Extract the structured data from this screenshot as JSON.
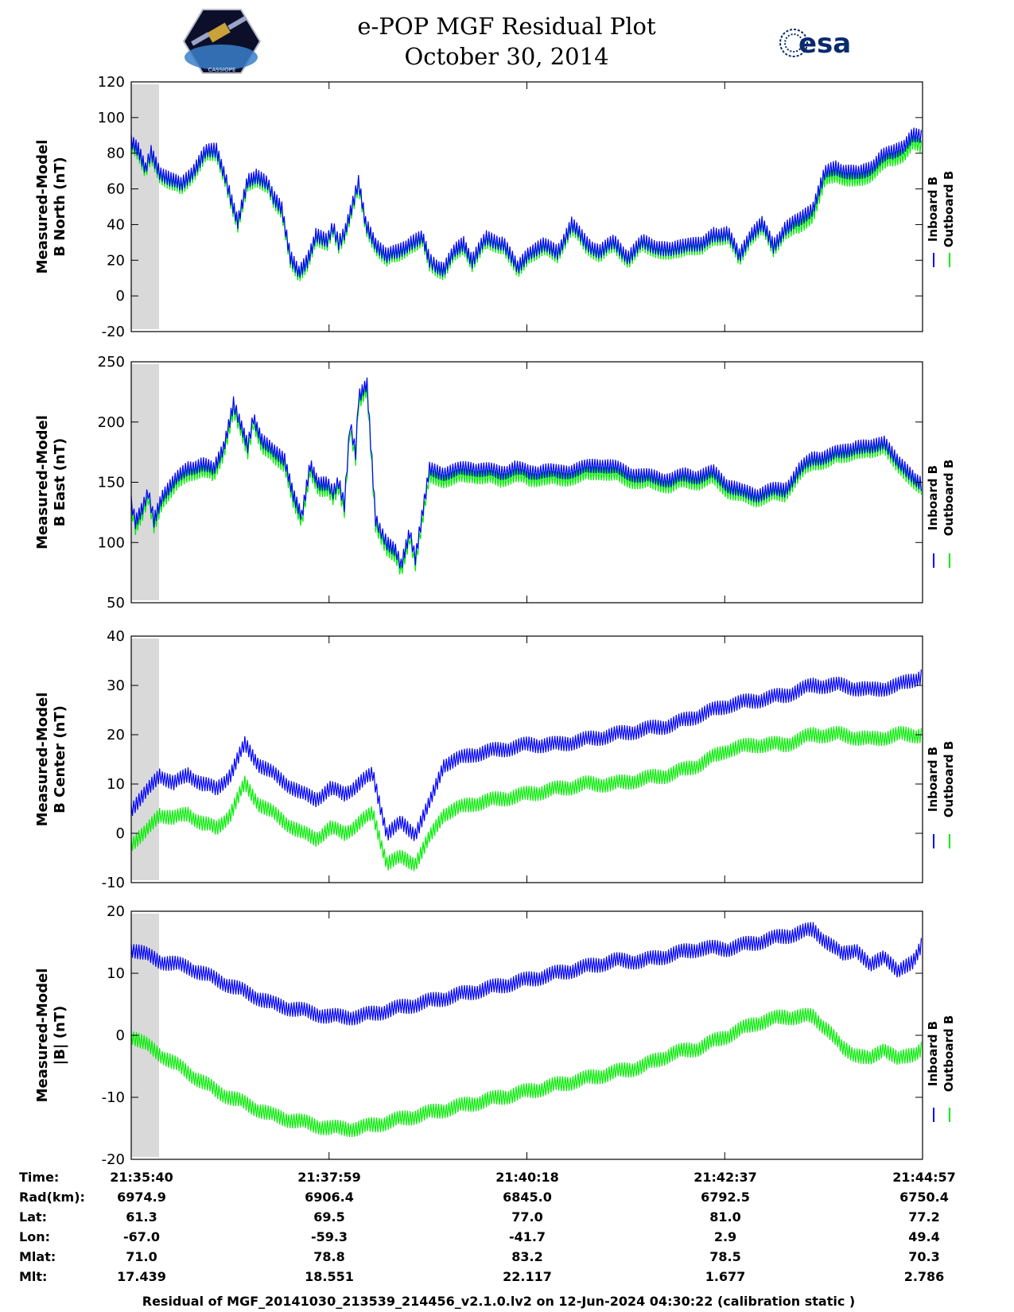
{
  "title_line1": "e-POP MGF Residual Plot",
  "title_line2": "October 30, 2014",
  "logo_left": {
    "label": "CASSIOPE"
  },
  "logo_right": {
    "label": "esa"
  },
  "colors": {
    "inboard": "#0000ff",
    "outboard": "#00ee00",
    "gap": "#d9d9d9"
  },
  "footer": "Residual of MGF_20141030_213539_214456_v2.1.0.lv2 on 12-Jun-2024 04:30:22 (calibration static )",
  "table": {
    "rows": [
      {
        "label": "Time:",
        "values": [
          "21:35:40",
          "21:37:59",
          "21:40:18",
          "21:42:37",
          "21:44:57"
        ]
      },
      {
        "label": "Rad(km):",
        "values": [
          "6974.9",
          "6906.4",
          "6845.0",
          "6792.5",
          "6750.4"
        ]
      },
      {
        "label": "Lat:",
        "values": [
          "61.3",
          "69.5",
          "77.0",
          "81.0",
          "77.2"
        ]
      },
      {
        "label": "Lon:",
        "values": [
          "-67.0",
          "-59.3",
          "-41.7",
          "2.9",
          "49.4"
        ]
      },
      {
        "label": "Mlat:",
        "values": [
          "71.0",
          "78.8",
          "83.2",
          "78.5",
          "70.3"
        ]
      },
      {
        "label": "Mlt:",
        "values": [
          "17.439",
          "18.551",
          "22.117",
          "1.677",
          "2.786"
        ]
      }
    ]
  },
  "chart_data": [
    {
      "type": "line",
      "ylabel": [
        "Measured-Model",
        "B North (nT)"
      ],
      "ylim": [
        -20,
        120
      ],
      "yticks": [
        -20,
        0,
        20,
        40,
        60,
        80,
        100,
        120
      ],
      "xlim": [
        0,
        557
      ],
      "legend": [
        "Inboard B",
        "Outboard B"
      ],
      "gap_x": [
        0,
        14
      ],
      "series": [
        {
          "name": "Inboard B",
          "x": [
            0,
            5,
            10,
            14,
            20,
            28,
            35,
            45,
            52,
            60,
            66,
            70,
            75,
            82,
            88,
            96,
            100,
            106,
            112,
            118,
            124,
            130,
            138,
            142,
            146,
            150,
            156,
            160,
            165,
            172,
            180,
            188,
            196,
            205,
            210,
            214,
            220,
            228,
            234,
            240,
            250,
            262,
            272,
            280,
            290,
            300,
            310,
            320,
            330,
            340,
            350,
            360,
            370,
            380,
            392,
            402,
            410,
            420,
            428,
            436,
            444,
            452,
            460,
            470,
            480,
            488,
            496,
            504,
            512,
            520,
            528,
            536,
            544,
            550,
            557
          ],
          "values": [
            88,
            82,
            70,
            80,
            70,
            65,
            62,
            72,
            80,
            82,
            68,
            55,
            40,
            65,
            68,
            62,
            55,
            50,
            22,
            12,
            20,
            35,
            30,
            38,
            30,
            36,
            52,
            63,
            40,
            30,
            22,
            25,
            30,
            32,
            20,
            18,
            15,
            25,
            30,
            20,
            32,
            30,
            15,
            25,
            28,
            25,
            40,
            30,
            25,
            30,
            22,
            30,
            28,
            25,
            30,
            28,
            35,
            35,
            22,
            35,
            40,
            28,
            38,
            42,
            50,
            68,
            72,
            70,
            68,
            72,
            78,
            80,
            85,
            90,
            88
          ]
        },
        {
          "name": "Outboard B",
          "x": [
            0,
            5,
            10,
            14,
            20,
            28,
            35,
            45,
            52,
            60,
            66,
            70,
            75,
            82,
            88,
            96,
            100,
            106,
            112,
            118,
            124,
            130,
            138,
            142,
            146,
            150,
            156,
            160,
            165,
            172,
            180,
            188,
            196,
            205,
            210,
            214,
            220,
            228,
            234,
            240,
            250,
            262,
            272,
            280,
            290,
            300,
            310,
            320,
            330,
            340,
            350,
            360,
            370,
            380,
            392,
            402,
            410,
            420,
            428,
            436,
            444,
            452,
            460,
            470,
            480,
            488,
            496,
            504,
            512,
            520,
            528,
            536,
            544,
            550,
            557
          ],
          "values": [
            86,
            80,
            68,
            78,
            68,
            63,
            60,
            70,
            78,
            80,
            66,
            53,
            38,
            63,
            66,
            60,
            53,
            48,
            20,
            10,
            18,
            33,
            28,
            36,
            28,
            34,
            50,
            61,
            38,
            28,
            20,
            23,
            28,
            30,
            18,
            16,
            13,
            23,
            28,
            18,
            30,
            28,
            13,
            23,
            26,
            23,
            38,
            28,
            23,
            28,
            20,
            28,
            26,
            23,
            28,
            26,
            33,
            33,
            20,
            33,
            38,
            26,
            36,
            38,
            46,
            64,
            68,
            66,
            64,
            68,
            74,
            76,
            80,
            86,
            82
          ]
        }
      ]
    },
    {
      "type": "line",
      "ylabel": [
        "Measured-Model",
        "B East (nT)"
      ],
      "ylim": [
        50,
        250
      ],
      "yticks": [
        50,
        100,
        150,
        200,
        250
      ],
      "xlim": [
        0,
        557
      ],
      "legend": [
        "Inboard B",
        "Outboard B"
      ],
      "gap_x": [
        0,
        14
      ],
      "series": [
        {
          "name": "Inboard B",
          "x": [
            0,
            3,
            8,
            12,
            16,
            22,
            30,
            40,
            50,
            58,
            65,
            72,
            76,
            82,
            86,
            92,
            100,
            108,
            114,
            120,
            126,
            132,
            138,
            142,
            146,
            150,
            154,
            158,
            160,
            166,
            172,
            176,
            180,
            186,
            190,
            196,
            200,
            210,
            220,
            230,
            240,
            250,
            260,
            270,
            280,
            290,
            300,
            310,
            320,
            330,
            340,
            350,
            360,
            370,
            380,
            390,
            400,
            410,
            420,
            430,
            440,
            450,
            460,
            470,
            480,
            490,
            500,
            510,
            520,
            530,
            540,
            550,
            557
          ],
          "values": [
            135,
            118,
            128,
            140,
            118,
            140,
            150,
            162,
            165,
            160,
            180,
            215,
            200,
            180,
            205,
            185,
            175,
            170,
            140,
            120,
            165,
            150,
            148,
            140,
            150,
            132,
            200,
            175,
            220,
            230,
            120,
            110,
            100,
            92,
            80,
            110,
            88,
            160,
            158,
            160,
            162,
            160,
            158,
            162,
            158,
            160,
            158,
            160,
            162,
            165,
            162,
            158,
            155,
            154,
            152,
            156,
            155,
            158,
            148,
            142,
            140,
            143,
            144,
            160,
            170,
            172,
            175,
            180,
            178,
            185,
            165,
            156,
            148
          ]
        },
        {
          "name": "Outboard B",
          "x": [
            0,
            3,
            8,
            12,
            16,
            22,
            30,
            40,
            50,
            58,
            65,
            72,
            76,
            82,
            86,
            92,
            100,
            108,
            114,
            120,
            126,
            132,
            138,
            142,
            146,
            150,
            154,
            158,
            160,
            166,
            172,
            176,
            180,
            186,
            190,
            196,
            200,
            210,
            220,
            230,
            240,
            250,
            260,
            270,
            280,
            290,
            300,
            310,
            320,
            330,
            340,
            350,
            360,
            370,
            380,
            390,
            400,
            410,
            420,
            430,
            440,
            450,
            460,
            470,
            480,
            490,
            500,
            510,
            520,
            530,
            540,
            550,
            557
          ],
          "values": [
            130,
            113,
            123,
            135,
            113,
            135,
            145,
            157,
            160,
            155,
            175,
            210,
            195,
            175,
            200,
            180,
            170,
            165,
            135,
            115,
            160,
            145,
            143,
            135,
            145,
            127,
            195,
            170,
            215,
            225,
            115,
            105,
            95,
            87,
            75,
            105,
            83,
            154,
            152,
            154,
            156,
            154,
            152,
            156,
            152,
            154,
            152,
            154,
            156,
            159,
            156,
            152,
            150,
            149,
            147,
            151,
            150,
            153,
            143,
            138,
            136,
            139,
            140,
            156,
            166,
            168,
            171,
            176,
            174,
            181,
            161,
            152,
            145
          ]
        }
      ]
    },
    {
      "type": "line",
      "ylabel": [
        "Measured-Model",
        "B Center (nT)"
      ],
      "ylim": [
        -10,
        40
      ],
      "yticks": [
        -10,
        0,
        10,
        20,
        30,
        40
      ],
      "xlim": [
        0,
        557
      ],
      "legend": [
        "Inboard B",
        "Outboard B"
      ],
      "gap_x": [
        0,
        14
      ],
      "series": [
        {
          "name": "Inboard B",
          "x": [
            0,
            10,
            20,
            30,
            40,
            50,
            60,
            70,
            80,
            90,
            100,
            110,
            120,
            130,
            140,
            150,
            160,
            170,
            180,
            190,
            200,
            210,
            220,
            240,
            260,
            280,
            300,
            320,
            340,
            360,
            380,
            400,
            420,
            440,
            460,
            480,
            500,
            520,
            540,
            557
          ],
          "values": [
            5,
            8,
            12,
            10,
            12,
            10,
            9,
            12,
            18,
            14,
            12,
            10,
            8,
            7,
            9,
            8,
            10,
            12,
            0,
            2,
            0,
            6,
            14,
            16,
            17,
            18,
            18,
            19,
            20,
            21,
            22,
            24,
            26,
            27,
            28,
            30,
            30,
            29,
            30,
            32
          ]
        },
        {
          "name": "Outboard B",
          "x": [
            0,
            10,
            20,
            30,
            40,
            50,
            60,
            70,
            80,
            90,
            100,
            110,
            120,
            130,
            140,
            150,
            160,
            170,
            180,
            190,
            200,
            210,
            220,
            240,
            260,
            280,
            300,
            320,
            340,
            360,
            380,
            400,
            420,
            440,
            460,
            480,
            500,
            520,
            540,
            557
          ],
          "values": [
            -2,
            0,
            4,
            3,
            4,
            2,
            1,
            4,
            10,
            6,
            4,
            2,
            0,
            -1,
            1,
            0,
            2,
            4,
            -6,
            -5,
            -6,
            -1,
            4,
            6,
            7,
            8,
            9,
            10,
            10,
            11,
            12,
            14,
            17,
            18,
            18,
            20,
            20,
            19,
            20,
            20
          ]
        }
      ]
    },
    {
      "type": "line",
      "ylabel": [
        "Measured-Model",
        "|B| (nT)"
      ],
      "ylim": [
        -20,
        20
      ],
      "yticks": [
        -20,
        -10,
        0,
        10,
        20
      ],
      "xlim": [
        0,
        557
      ],
      "legend": [
        "Inboard B",
        "Outboard B"
      ],
      "gap_x": [
        0,
        14
      ],
      "series": [
        {
          "name": "Inboard B",
          "x": [
            0,
            20,
            40,
            60,
            80,
            100,
            120,
            140,
            160,
            180,
            200,
            220,
            240,
            260,
            280,
            300,
            320,
            340,
            360,
            380,
            400,
            420,
            440,
            460,
            480,
            490,
            500,
            510,
            520,
            530,
            540,
            550,
            557
          ],
          "values": [
            14,
            12,
            11,
            9,
            7,
            5,
            4,
            3,
            3,
            4,
            5,
            6,
            7,
            8,
            9,
            10,
            11,
            12,
            12,
            13,
            14,
            14,
            15,
            16,
            17,
            15,
            13,
            14,
            11,
            13,
            10,
            12,
            15
          ]
        },
        {
          "name": "Outboard B",
          "x": [
            0,
            20,
            40,
            60,
            80,
            100,
            120,
            140,
            160,
            180,
            200,
            220,
            240,
            260,
            280,
            300,
            320,
            340,
            360,
            380,
            400,
            420,
            440,
            460,
            480,
            490,
            500,
            510,
            520,
            530,
            540,
            550,
            557
          ],
          "values": [
            0,
            -3,
            -6,
            -9,
            -11,
            -13,
            -14,
            -15,
            -15,
            -14,
            -13,
            -12,
            -11,
            -10,
            -9,
            -8,
            -7,
            -6,
            -5,
            -3,
            -2,
            0,
            2,
            3,
            3,
            1,
            -2,
            -3,
            -4,
            -2,
            -4,
            -3,
            -2
          ]
        }
      ]
    }
  ]
}
